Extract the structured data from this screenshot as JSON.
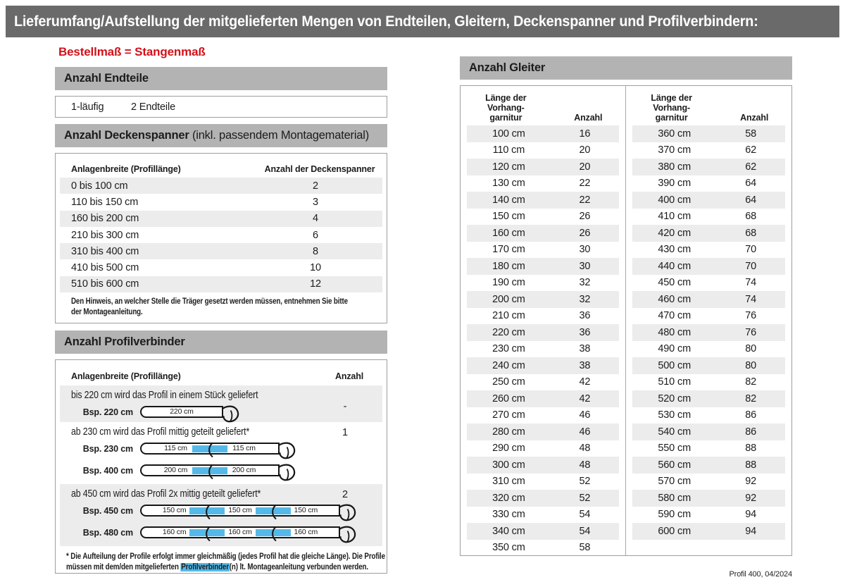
{
  "page": {
    "title": "Lieferumfang/Aufstellung der mitgelieferten Mengen von Endteilen, Gleitern, Deckenspanner und Profilverbindern:",
    "subtitle": "Bestellmaß = Stangenmaß",
    "footer": "Profil 400, 04/2024"
  },
  "colors": {
    "accent_red": "#d31119",
    "highlight_blue": "#54b9e9",
    "title_bar_gray": "#6a6a6a",
    "banner_gray": "#b3b3b3",
    "row_shade_gray": "#ececec"
  },
  "endteile": {
    "heading": "Anzahl Endteile",
    "lauf_label": "1-läufig",
    "value": "2 Endteile"
  },
  "deckenspanner": {
    "heading_bold": "Anzahl Deckenspanner",
    "heading_rest": " (inkl. passendem Montagematerial)",
    "col1": "Anlagenbreite (Profillänge)",
    "col2": "Anzahl der Deckenspanner",
    "rows": [
      {
        "range": "0 bis 100 cm",
        "anzahl": "2"
      },
      {
        "range": "110 bis 150 cm",
        "anzahl": "3"
      },
      {
        "range": "160 bis 200 cm",
        "anzahl": "4"
      },
      {
        "range": "210 bis 300 cm",
        "anzahl": "6"
      },
      {
        "range": "310 bis 400 cm",
        "anzahl": "8"
      },
      {
        "range": "410 bis 500 cm",
        "anzahl": "10"
      },
      {
        "range": "510 bis 600 cm",
        "anzahl": "12"
      }
    ],
    "note_lines": [
      "Den Hinweis, an welcher Stelle die Träger gesetzt werden müssen, entnehmen Sie bitte",
      "der Montageanleitung."
    ]
  },
  "profilverbinder": {
    "heading": "Anzahl Profilverbinder",
    "col1": "Anlagenbreite (Profillänge)",
    "col2": "Anzahl",
    "rows": [
      {
        "description": "bis 220 cm wird das Profil in einem Stück geliefert",
        "anzahl": "-",
        "examples": [
          {
            "label": "Bsp. 220 cm",
            "segments": [
              "220 cm"
            ]
          }
        ]
      },
      {
        "description": "ab 230 cm wird das Profil mittig geteilt geliefert*",
        "anzahl": "1",
        "examples": [
          {
            "label": "Bsp. 230 cm",
            "segments": [
              "115 cm",
              "115 cm"
            ]
          },
          {
            "label": "Bsp. 400 cm",
            "segments": [
              "200 cm",
              "200 cm"
            ]
          }
        ]
      },
      {
        "description": "ab 450 cm wird das Profil 2x mittig geteilt geliefert*",
        "anzahl": "2",
        "examples": [
          {
            "label": "Bsp. 450 cm",
            "segments": [
              "150 cm",
              "150 cm",
              "150 cm"
            ]
          },
          {
            "label": "Bsp. 480 cm",
            "segments": [
              "160 cm",
              "160 cm",
              "160 cm"
            ]
          }
        ]
      }
    ],
    "footnote": {
      "line1": "* Die Aufteilung der Profile erfolgt immer gleichmäßig (jedes Profil hat die gleiche Länge). Die Profile",
      "line2_pre": "müssen mit dem/den mitgelieferten ",
      "line2_highlight": "Profilverbinder",
      "line2_post": "(n) lt. Montageanleitung verbunden werden."
    }
  },
  "gleiter": {
    "heading": "Anzahl Gleiter",
    "col1_lines": [
      "Länge der",
      "Vorhang-",
      "garnitur"
    ],
    "col2": "Anzahl",
    "left_rows": [
      {
        "len": "100 cm",
        "anzahl": "16"
      },
      {
        "len": "110 cm",
        "anzahl": "20"
      },
      {
        "len": "120 cm",
        "anzahl": "20"
      },
      {
        "len": "130 cm",
        "anzahl": "22"
      },
      {
        "len": "140 cm",
        "anzahl": "22"
      },
      {
        "len": "150 cm",
        "anzahl": "26"
      },
      {
        "len": "160 cm",
        "anzahl": "26"
      },
      {
        "len": "170 cm",
        "anzahl": "30"
      },
      {
        "len": "180 cm",
        "anzahl": "30"
      },
      {
        "len": "190 cm",
        "anzahl": "32"
      },
      {
        "len": "200 cm",
        "anzahl": "32"
      },
      {
        "len": "210 cm",
        "anzahl": "36"
      },
      {
        "len": "220 cm",
        "anzahl": "36"
      },
      {
        "len": "230 cm",
        "anzahl": "38"
      },
      {
        "len": "240 cm",
        "anzahl": "38"
      },
      {
        "len": "250 cm",
        "anzahl": "42"
      },
      {
        "len": "260 cm",
        "anzahl": "42"
      },
      {
        "len": "270 cm",
        "anzahl": "46"
      },
      {
        "len": "280 cm",
        "anzahl": "46"
      },
      {
        "len": "290 cm",
        "anzahl": "48"
      },
      {
        "len": "300 cm",
        "anzahl": "48"
      },
      {
        "len": "310 cm",
        "anzahl": "52"
      },
      {
        "len": "320 cm",
        "anzahl": "52"
      },
      {
        "len": "330 cm",
        "anzahl": "54"
      },
      {
        "len": "340 cm",
        "anzahl": "54"
      },
      {
        "len": "350 cm",
        "anzahl": "58"
      }
    ],
    "right_rows": [
      {
        "len": "360 cm",
        "anzahl": "58"
      },
      {
        "len": "370 cm",
        "anzahl": "62"
      },
      {
        "len": "380 cm",
        "anzahl": "62"
      },
      {
        "len": "390 cm",
        "anzahl": "64"
      },
      {
        "len": "400 cm",
        "anzahl": "64"
      },
      {
        "len": "410 cm",
        "anzahl": "68"
      },
      {
        "len": "420 cm",
        "anzahl": "68"
      },
      {
        "len": "430 cm",
        "anzahl": "70"
      },
      {
        "len": "440 cm",
        "anzahl": "70"
      },
      {
        "len": "450 cm",
        "anzahl": "74"
      },
      {
        "len": "460 cm",
        "anzahl": "74"
      },
      {
        "len": "470 cm",
        "anzahl": "76"
      },
      {
        "len": "480 cm",
        "anzahl": "76"
      },
      {
        "len": "490 cm",
        "anzahl": "80"
      },
      {
        "len": "500 cm",
        "anzahl": "80"
      },
      {
        "len": "510 cm",
        "anzahl": "82"
      },
      {
        "len": "520 cm",
        "anzahl": "82"
      },
      {
        "len": "530 cm",
        "anzahl": "86"
      },
      {
        "len": "540 cm",
        "anzahl": "86"
      },
      {
        "len": "550 cm",
        "anzahl": "88"
      },
      {
        "len": "560 cm",
        "anzahl": "88"
      },
      {
        "len": "570 cm",
        "anzahl": "92"
      },
      {
        "len": "580 cm",
        "anzahl": "92"
      },
      {
        "len": "590 cm",
        "anzahl": "94"
      },
      {
        "len": "600 cm",
        "anzahl": "94"
      }
    ]
  }
}
